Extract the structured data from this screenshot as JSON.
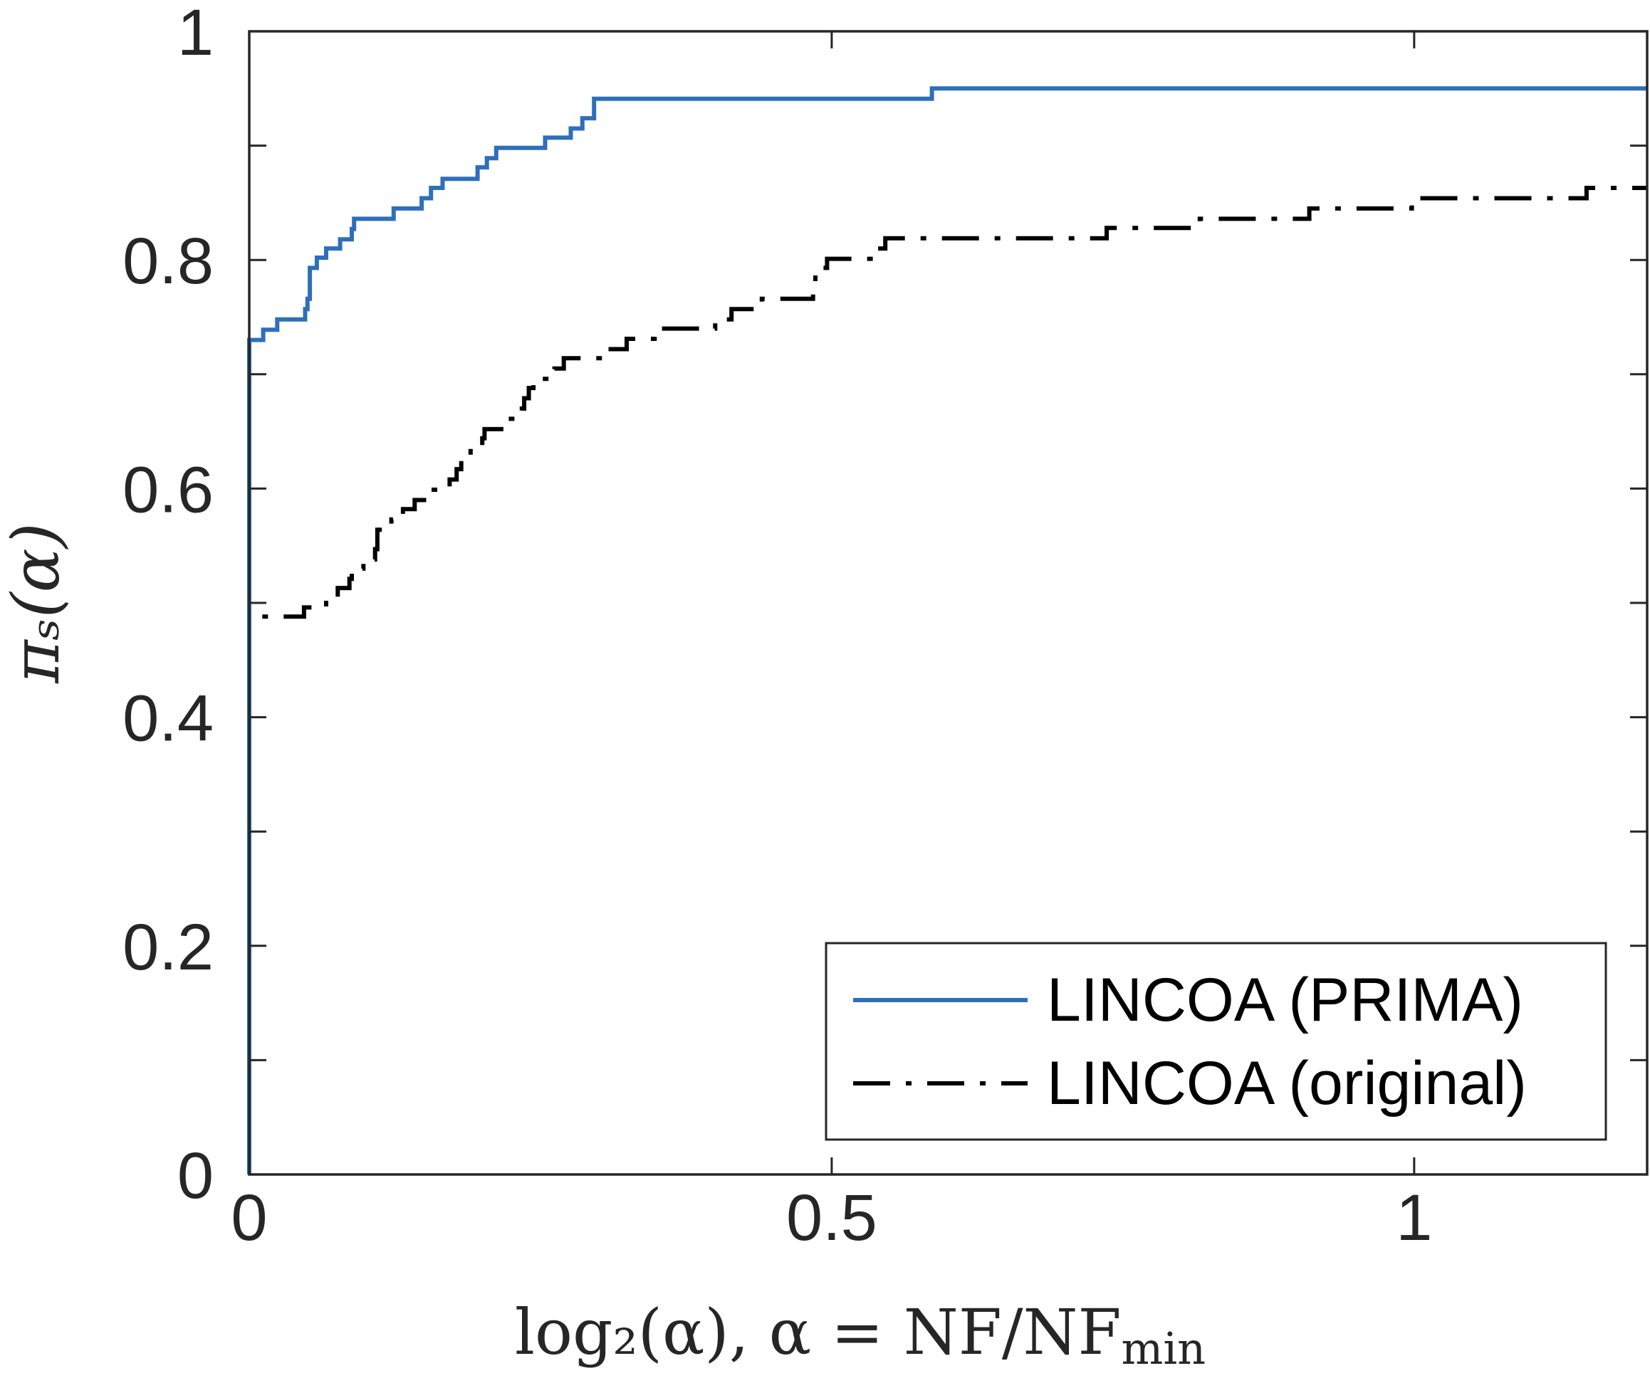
{
  "chart_data": {
    "type": "line",
    "title": "",
    "xlabel": "log₂(α),    α = NF/NF",
    "xlabel_sub": "min",
    "ylabel": "πₛ(α)",
    "xlim": [
      0,
      1.2
    ],
    "ylim": [
      0,
      1
    ],
    "xticks": [
      0,
      0.5,
      1
    ],
    "xtick_labels": [
      "0",
      "0.5",
      "1"
    ],
    "yticks": [
      0,
      0.2,
      0.4,
      0.6,
      0.8,
      1
    ],
    "ytick_labels": [
      "0",
      "0.2",
      "0.4",
      "0.6",
      "0.8",
      "1"
    ],
    "yminor_ticks": [
      0.1,
      0.3,
      0.5,
      0.7,
      0.9
    ],
    "legend_position": "bottom-right",
    "series": [
      {
        "name": "LINCOA (PRIMA)",
        "color": "#2e6fba",
        "style": "solid",
        "points": [
          [
            0.0,
            0.0
          ],
          [
            0.0,
            0.73
          ],
          [
            0.012,
            0.73
          ],
          [
            0.012,
            0.739
          ],
          [
            0.024,
            0.739
          ],
          [
            0.024,
            0.748
          ],
          [
            0.048,
            0.748
          ],
          [
            0.048,
            0.757
          ],
          [
            0.05,
            0.757
          ],
          [
            0.05,
            0.766
          ],
          [
            0.052,
            0.766
          ],
          [
            0.052,
            0.793
          ],
          [
            0.058,
            0.793
          ],
          [
            0.058,
            0.802
          ],
          [
            0.066,
            0.802
          ],
          [
            0.066,
            0.81
          ],
          [
            0.078,
            0.81
          ],
          [
            0.078,
            0.818
          ],
          [
            0.088,
            0.818
          ],
          [
            0.088,
            0.827
          ],
          [
            0.09,
            0.827
          ],
          [
            0.09,
            0.836
          ],
          [
            0.124,
            0.836
          ],
          [
            0.124,
            0.845
          ],
          [
            0.148,
            0.845
          ],
          [
            0.148,
            0.854
          ],
          [
            0.156,
            0.854
          ],
          [
            0.156,
            0.863
          ],
          [
            0.166,
            0.863
          ],
          [
            0.166,
            0.871
          ],
          [
            0.196,
            0.871
          ],
          [
            0.196,
            0.881
          ],
          [
            0.204,
            0.881
          ],
          [
            0.204,
            0.889
          ],
          [
            0.212,
            0.889
          ],
          [
            0.212,
            0.898
          ],
          [
            0.254,
            0.898
          ],
          [
            0.254,
            0.907
          ],
          [
            0.276,
            0.907
          ],
          [
            0.276,
            0.915
          ],
          [
            0.286,
            0.915
          ],
          [
            0.286,
            0.924
          ],
          [
            0.296,
            0.924
          ],
          [
            0.296,
            0.941
          ],
          [
            0.586,
            0.941
          ],
          [
            0.586,
            0.95
          ],
          [
            1.2,
            0.95
          ]
        ]
      },
      {
        "name": "LINCOA (original)",
        "color": "#000000",
        "style": "dashdot",
        "points": [
          [
            0.0,
            0.0
          ],
          [
            0.0,
            0.488
          ],
          [
            0.047,
            0.488
          ],
          [
            0.047,
            0.496
          ],
          [
            0.066,
            0.496
          ],
          [
            0.066,
            0.504
          ],
          [
            0.076,
            0.504
          ],
          [
            0.076,
            0.513
          ],
          [
            0.086,
            0.513
          ],
          [
            0.086,
            0.521
          ],
          [
            0.088,
            0.521
          ],
          [
            0.088,
            0.53
          ],
          [
            0.098,
            0.53
          ],
          [
            0.098,
            0.538
          ],
          [
            0.108,
            0.538
          ],
          [
            0.108,
            0.547
          ],
          [
            0.11,
            0.547
          ],
          [
            0.11,
            0.556
          ],
          [
            0.11,
            0.564
          ],
          [
            0.122,
            0.564
          ],
          [
            0.122,
            0.573
          ],
          [
            0.132,
            0.573
          ],
          [
            0.132,
            0.582
          ],
          [
            0.142,
            0.582
          ],
          [
            0.142,
            0.59
          ],
          [
            0.152,
            0.59
          ],
          [
            0.152,
            0.599
          ],
          [
            0.172,
            0.599
          ],
          [
            0.172,
            0.608
          ],
          [
            0.178,
            0.608
          ],
          [
            0.178,
            0.617
          ],
          [
            0.182,
            0.617
          ],
          [
            0.182,
            0.626
          ],
          [
            0.19,
            0.626
          ],
          [
            0.19,
            0.635
          ],
          [
            0.2,
            0.635
          ],
          [
            0.2,
            0.644
          ],
          [
            0.202,
            0.644
          ],
          [
            0.202,
            0.652
          ],
          [
            0.22,
            0.652
          ],
          [
            0.22,
            0.661
          ],
          [
            0.234,
            0.661
          ],
          [
            0.234,
            0.67
          ],
          [
            0.236,
            0.67
          ],
          [
            0.236,
            0.679
          ],
          [
            0.24,
            0.679
          ],
          [
            0.24,
            0.688
          ],
          [
            0.244,
            0.688
          ],
          [
            0.244,
            0.696
          ],
          [
            0.262,
            0.696
          ],
          [
            0.262,
            0.705
          ],
          [
            0.27,
            0.705
          ],
          [
            0.27,
            0.714
          ],
          [
            0.304,
            0.714
          ],
          [
            0.304,
            0.722
          ],
          [
            0.324,
            0.722
          ],
          [
            0.324,
            0.731
          ],
          [
            0.348,
            0.731
          ],
          [
            0.348,
            0.74
          ],
          [
            0.4,
            0.74
          ],
          [
            0.4,
            0.748
          ],
          [
            0.414,
            0.748
          ],
          [
            0.414,
            0.757
          ],
          [
            0.44,
            0.757
          ],
          [
            0.44,
            0.766
          ],
          [
            0.484,
            0.766
          ],
          [
            0.484,
            0.775
          ],
          [
            0.486,
            0.775
          ],
          [
            0.486,
            0.793
          ],
          [
            0.496,
            0.793
          ],
          [
            0.496,
            0.801
          ],
          [
            0.536,
            0.801
          ],
          [
            0.536,
            0.81
          ],
          [
            0.546,
            0.81
          ],
          [
            0.546,
            0.819
          ],
          [
            0.736,
            0.819
          ],
          [
            0.736,
            0.828
          ],
          [
            0.816,
            0.828
          ],
          [
            0.816,
            0.836
          ],
          [
            0.91,
            0.836
          ],
          [
            0.91,
            0.845
          ],
          [
            0.998,
            0.845
          ],
          [
            0.998,
            0.854
          ],
          [
            1.148,
            0.854
          ],
          [
            1.148,
            0.863
          ],
          [
            1.2,
            0.863
          ]
        ]
      }
    ]
  }
}
